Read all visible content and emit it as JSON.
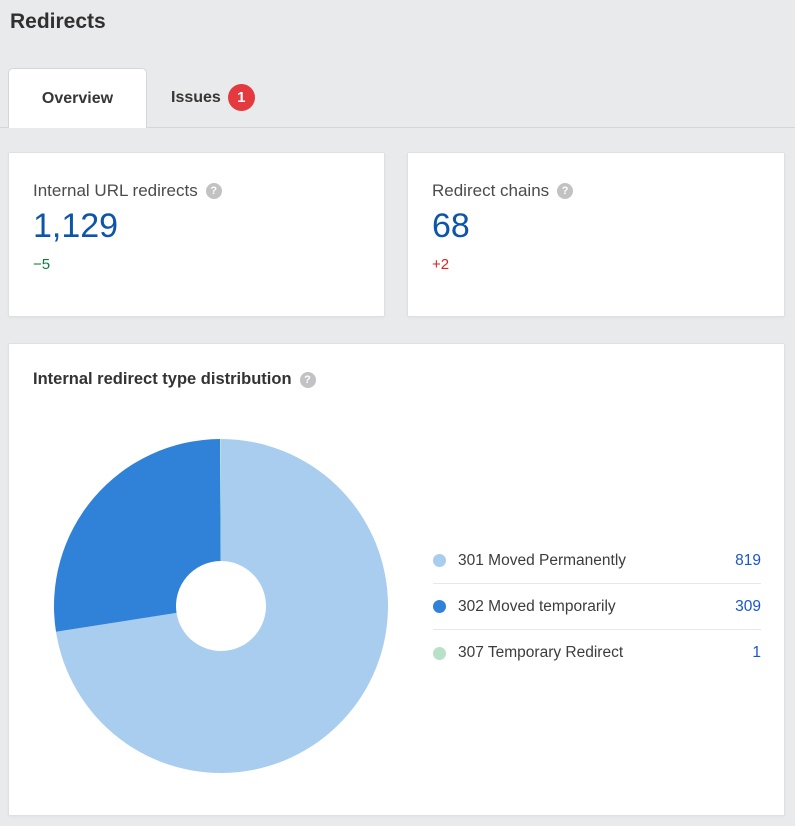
{
  "page": {
    "title": "Redirects",
    "background": "#e9eaeb"
  },
  "icons": {
    "help_glyph": "?"
  },
  "tabs": [
    {
      "label": "Overview",
      "active": true
    },
    {
      "label": "Issues",
      "active": false,
      "badge": "1",
      "badge_color": "#e4393e"
    }
  ],
  "cards": [
    {
      "label": "Internal URL redirects",
      "value": "1,129",
      "value_color": "#0c55a9",
      "delta": "−5",
      "delta_color": "#0b7f3e"
    },
    {
      "label": "Redirect chains",
      "value": "68",
      "value_color": "#0c55a9",
      "delta": "+2",
      "delta_color": "#de2020"
    }
  ],
  "chart_card": {
    "title": "Internal redirect type distribution"
  },
  "chart_data": {
    "type": "pie",
    "title": "Internal redirect type distribution",
    "donut": true,
    "start_angle_deg": -90,
    "direction": "clockwise",
    "legend_position": "right",
    "categories": [
      "301 Moved Permanently",
      "302 Moved temporarily",
      "307 Temporary Redirect"
    ],
    "values": [
      819,
      309,
      1
    ],
    "colors": [
      "#a9cdee",
      "#3082d9",
      "#b9e1c8"
    ],
    "outer_radius_px": 167,
    "inner_radius_px": 45,
    "value_link_color": "#1a57c9",
    "label_color": "#3c3c3c"
  },
  "ui_colors": {
    "help_icon_bg": "#c2c2c4",
    "card_border": "#dfe0e2",
    "tab_border": "#d5d6d8"
  }
}
